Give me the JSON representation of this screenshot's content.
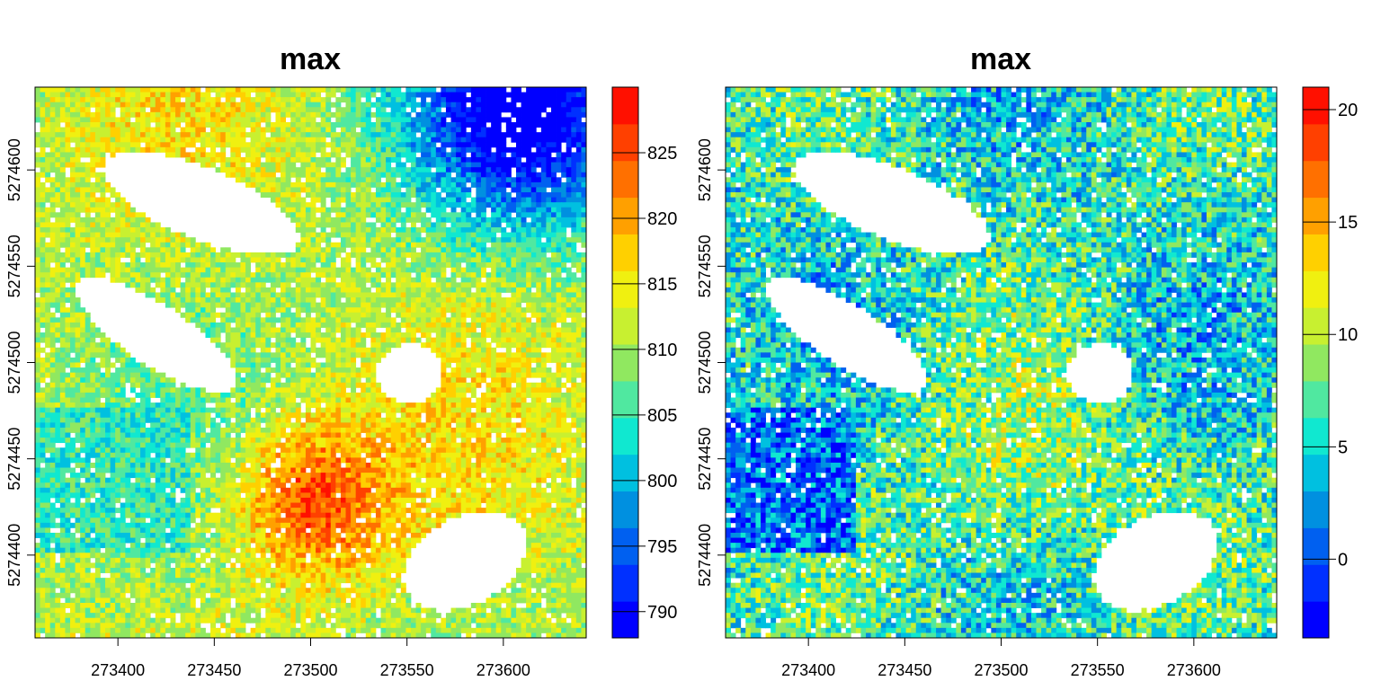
{
  "chart_data": [
    {
      "type": "heatmap",
      "title": "max",
      "xlim": [
        273357,
        273643
      ],
      "ylim": [
        5274357,
        5274643
      ],
      "x_ticks": [
        273400,
        273450,
        273500,
        273550,
        273600
      ],
      "y_ticks": [
        5274400,
        5274450,
        5274500,
        5274550,
        5274600
      ],
      "colorbar": {
        "range": [
          788,
          830
        ],
        "ticks": [
          790,
          795,
          800,
          805,
          810,
          815,
          820,
          825
        ],
        "colors": [
          "#0000ff",
          "#0030ff",
          "#0060f0",
          "#0090e0",
          "#00c0e0",
          "#10e8d0",
          "#50e8a0",
          "#90e860",
          "#c8f030",
          "#f0f010",
          "#ffd000",
          "#ffa000",
          "#ff7000",
          "#ff4000",
          "#ff1000"
        ]
      },
      "grid": false,
      "legend": "right"
    },
    {
      "type": "heatmap",
      "title": "max",
      "xlim": [
        273357,
        273643
      ],
      "ylim": [
        5274357,
        5274643
      ],
      "x_ticks": [
        273400,
        273450,
        273500,
        273550,
        273600
      ],
      "y_ticks": [
        5274400,
        5274450,
        5274500,
        5274550,
        5274600
      ],
      "colorbar": {
        "range": [
          -3.5,
          21
        ],
        "ticks": [
          0,
          5,
          10,
          15,
          20
        ],
        "colors": [
          "#0000ff",
          "#0030ff",
          "#0060f0",
          "#0090e0",
          "#00c0e0",
          "#10e8d0",
          "#50e8a0",
          "#90e860",
          "#c8f030",
          "#f0f010",
          "#ffd000",
          "#ffa000",
          "#ff7000",
          "#ff4000",
          "#ff1000"
        ]
      },
      "grid": false,
      "legend": "right"
    }
  ]
}
